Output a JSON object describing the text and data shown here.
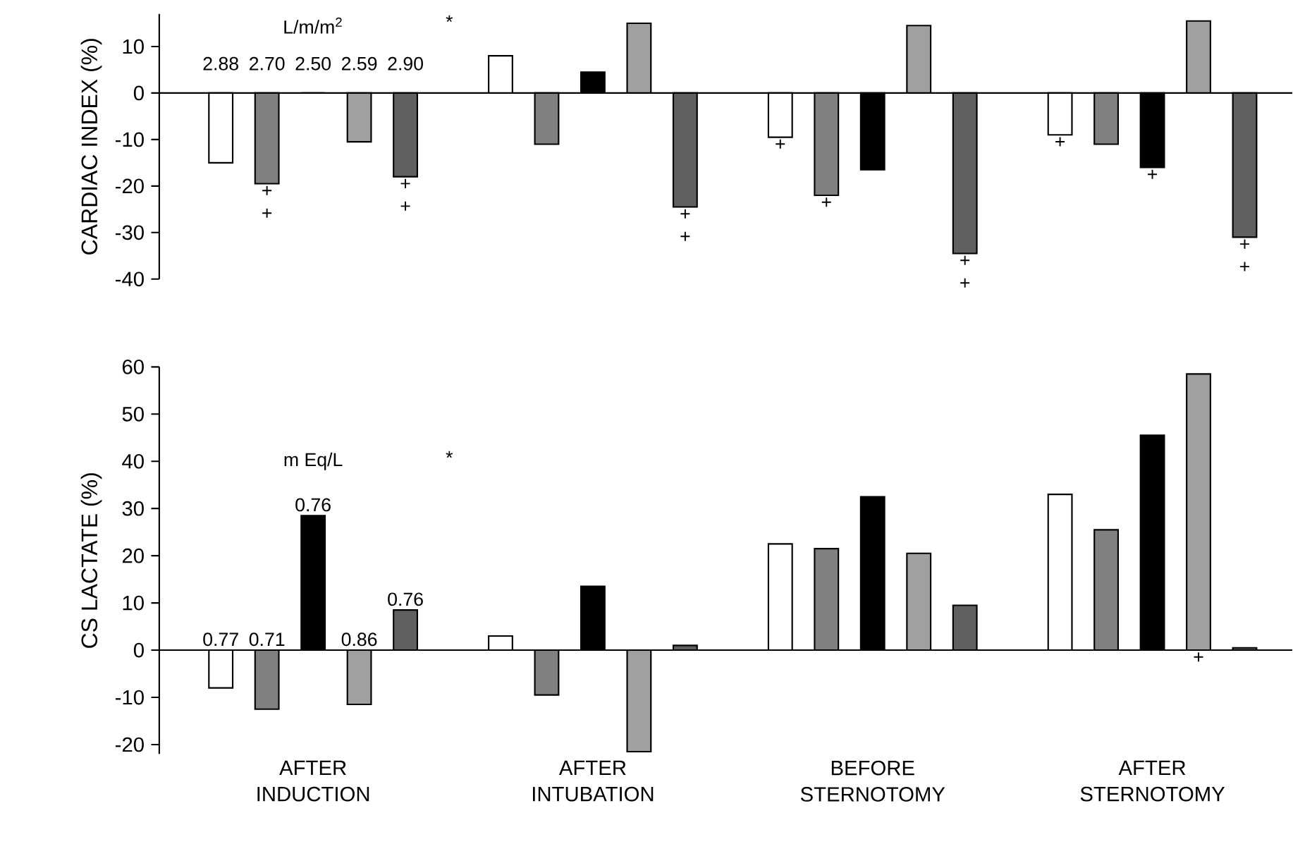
{
  "chart_data": [
    {
      "type": "bar",
      "ylabel": "CARDIAC INDEX (%)",
      "categories": [
        null,
        null,
        null,
        null
      ],
      "tick_labels": "y",
      "ylim": [
        -40,
        17
      ],
      "yticks": [
        10,
        0,
        -10,
        -20,
        -30,
        -40
      ],
      "series": [
        {
          "color": "#ffffff",
          "values": [
            -15,
            8,
            -9.5,
            -9
          ],
          "value_labels": [
            null,
            null,
            "+",
            "+"
          ]
        },
        {
          "color": "#808080",
          "values": [
            -19.5,
            -11,
            -22,
            -11
          ],
          "value_labels": [
            "+ +",
            null,
            "+",
            null
          ]
        },
        {
          "color": "#000000",
          "values": [
            0,
            4.5,
            -16.5,
            -16
          ],
          "value_labels": [
            null,
            null,
            null,
            "+"
          ]
        },
        {
          "color": "#a0a0a0",
          "values": [
            -10.5,
            15,
            14.5,
            15.5
          ]
        },
        {
          "color": "#606060",
          "values": [
            -18,
            -24.5,
            -34.5,
            -31
          ],
          "value_labels": [
            "+ +",
            "+ +",
            "+ +",
            "+ +"
          ]
        }
      ],
      "annotations": [
        "L/m/m$^{2}$",
        "2.88",
        "2.70",
        "2.50",
        "2.59",
        "2.90",
        "*"
      ]
    },
    {
      "type": "bar",
      "ylabel": "CS LACTATE (%)",
      "categories": [
        "AFTER INDUCTION",
        "AFTER INTUBATION",
        "BEFORE STERNOTOMY",
        "AFTER STERNOTOMY"
      ],
      "ylim": [
        -22,
        60
      ],
      "yticks": [
        60,
        50,
        40,
        30,
        20,
        10,
        0,
        -10,
        -20
      ],
      "series": [
        {
          "color": "#ffffff",
          "values": [
            -8,
            3,
            22.5,
            33
          ]
        },
        {
          "color": "#808080",
          "values": [
            -12.5,
            -9.5,
            21.5,
            25.5
          ]
        },
        {
          "color": "#000000",
          "values": [
            28.5,
            13.5,
            32.5,
            45.5
          ]
        },
        {
          "color": "#a0a0a0",
          "values": [
            -11.5,
            -21.5,
            20.5,
            58.5
          ],
          "value_labels": [
            null,
            null,
            null,
            "+"
          ]
        },
        {
          "color": "#606060",
          "values": [
            8.5,
            1,
            9.5,
            0.5
          ]
        }
      ],
      "annotations": [
        "m Eq/L",
        "0.77",
        "0.71",
        "0.76",
        "0.86",
        "0.76",
        "*"
      ]
    }
  ]
}
